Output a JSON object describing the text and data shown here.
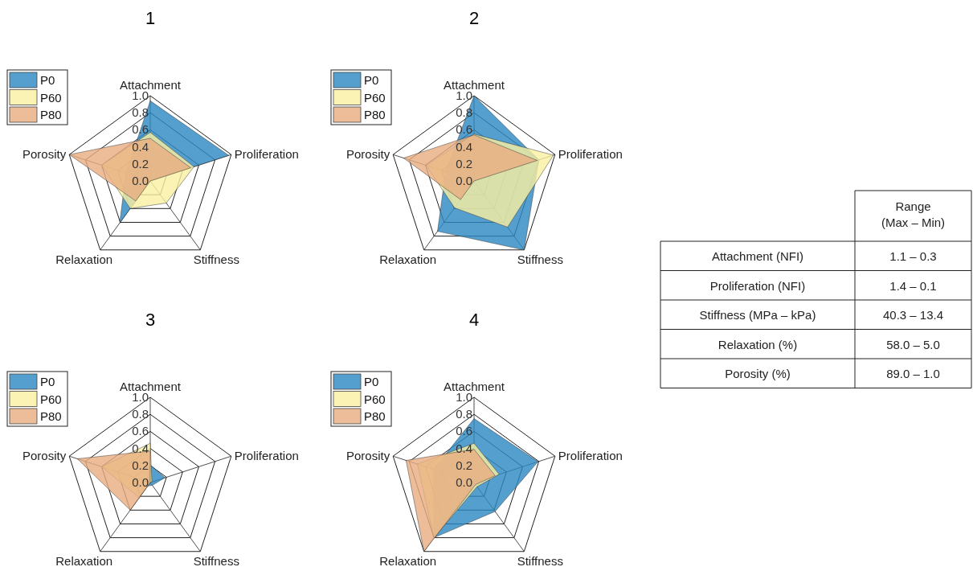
{
  "chart_data": [
    {
      "type": "radar",
      "title": "1",
      "categories": [
        "Attachment",
        "Proliferation",
        "Stiffness",
        "Relaxation",
        "Porosity"
      ],
      "ylim": [
        0,
        1
      ],
      "yticks": [
        {
          "value": 0,
          "label": "0.0"
        },
        {
          "value": 0.2,
          "label": "0.2"
        },
        {
          "value": 0.4,
          "label": "0.4"
        },
        {
          "value": 0.6,
          "label": "0.6"
        },
        {
          "value": 0.8,
          "label": "0.8"
        },
        {
          "value": 1,
          "label": "1.0"
        }
      ],
      "grid": true,
      "legend": "top left",
      "series": [
        {
          "name": "P0",
          "color": "#2a87c2",
          "values": [
            0.94,
            0.97,
            0.0,
            0.61,
            0.3
          ]
        },
        {
          "name": "P60",
          "color": "#faf0a0",
          "values": [
            0.57,
            0.54,
            0.32,
            0.4,
            0.6
          ]
        },
        {
          "name": "P80",
          "color": "#e9ad80",
          "values": [
            0.5,
            0.5,
            0.0,
            0.29,
            1.0
          ]
        }
      ]
    },
    {
      "type": "radar",
      "title": "2",
      "categories": [
        "Attachment",
        "Proliferation",
        "Stiffness",
        "Relaxation",
        "Porosity"
      ],
      "ylim": [
        0,
        1
      ],
      "yticks": [
        {
          "value": 0,
          "label": "0.0"
        },
        {
          "value": 0.2,
          "label": "0.2"
        },
        {
          "value": 0.4,
          "label": "0.4"
        },
        {
          "value": 0.6,
          "label": "0.6"
        },
        {
          "value": 0.8,
          "label": "0.8"
        },
        {
          "value": 1,
          "label": "1.0"
        }
      ],
      "grid": true,
      "legend": "top left",
      "series": [
        {
          "name": "P0",
          "color": "#2a87c2",
          "values": [
            1.0,
            0.8,
            1.0,
            0.73,
            0.35
          ]
        },
        {
          "name": "P60",
          "color": "#faf0a0",
          "values": [
            0.55,
            0.98,
            0.67,
            0.39,
            0.59
          ]
        },
        {
          "name": "P80",
          "color": "#e9ad80",
          "values": [
            0.54,
            0.78,
            0.0,
            0.27,
            0.87
          ]
        }
      ]
    },
    {
      "type": "radar",
      "title": "3",
      "categories": [
        "Attachment",
        "Proliferation",
        "Stiffness",
        "Relaxation",
        "Porosity"
      ],
      "ylim": [
        0,
        1
      ],
      "yticks": [
        {
          "value": 0,
          "label": "0.0"
        },
        {
          "value": 0.2,
          "label": "0.2"
        },
        {
          "value": 0.4,
          "label": "0.4"
        },
        {
          "value": 0.6,
          "label": "0.6"
        },
        {
          "value": 0.8,
          "label": "0.8"
        },
        {
          "value": 1,
          "label": "1.0"
        }
      ],
      "grid": true,
      "legend": "top left",
      "series": [
        {
          "name": "P0",
          "color": "#2a87c2",
          "values": [
            0.21,
            0.18,
            0.04,
            0.05,
            0.05
          ]
        },
        {
          "name": "P60",
          "color": "#faf0a0",
          "values": [
            0.46,
            0.02,
            0.0,
            0.22,
            0.6
          ]
        },
        {
          "name": "P80",
          "color": "#e9ad80",
          "values": [
            0.37,
            0.0,
            0.0,
            0.4,
            0.9
          ]
        }
      ]
    },
    {
      "type": "radar",
      "title": "4",
      "categories": [
        "Attachment",
        "Proliferation",
        "Stiffness",
        "Relaxation",
        "Porosity"
      ],
      "ylim": [
        0,
        1
      ],
      "yticks": [
        {
          "value": 0,
          "label": "0.0"
        },
        {
          "value": 0.2,
          "label": "0.2"
        },
        {
          "value": 0.4,
          "label": "0.4"
        },
        {
          "value": 0.6,
          "label": "0.6"
        },
        {
          "value": 0.8,
          "label": "0.8"
        },
        {
          "value": 1,
          "label": "1.0"
        }
      ],
      "grid": true,
      "legend": "top left",
      "series": [
        {
          "name": "P0",
          "color": "#2a87c2",
          "values": [
            0.75,
            0.79,
            0.42,
            0.8,
            0.5
          ]
        },
        {
          "name": "P60",
          "color": "#faf0a0",
          "values": [
            0.46,
            0.31,
            0.06,
            0.8,
            0.7
          ]
        },
        {
          "name": "P80",
          "color": "#e9ad80",
          "values": [
            0.39,
            0.26,
            0.03,
            1.0,
            0.84
          ]
        }
      ]
    },
    {
      "type": "other",
      "title": "Range (Max – Min)",
      "categories": [
        "Attachment (NFI)",
        "Proliferation (NFI)",
        "Stiffness (MPa –  kPa)",
        "Relaxation (%)",
        "Porosity (%)"
      ],
      "value_labels": [
        "1.1 – 0.3",
        "1.4 – 0.1",
        "40.3 – 13.4",
        "58.0 – 5.0",
        "89.0 – 1.0"
      ]
    }
  ]
}
